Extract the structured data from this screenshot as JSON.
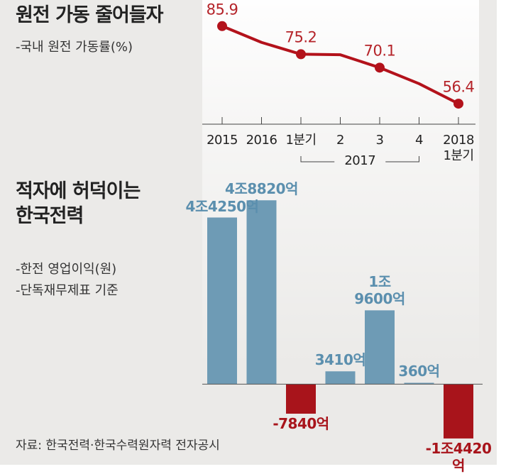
{
  "chart_data": [
    {
      "type": "line",
      "title": "원전 가동 줄어들자",
      "subtitle": "-국내 원전 가동률(%)",
      "categories": [
        "2015",
        "2016",
        "1분기",
        "2",
        "3",
        "4",
        "2018\n1분기"
      ],
      "group_label": "2017",
      "values": [
        85.9,
        79.7,
        75.2,
        75.0,
        70.1,
        64.0,
        56.4
      ],
      "value_labels": [
        "85.9",
        null,
        "75.2",
        null,
        "70.1",
        null,
        "56.4"
      ],
      "color": "#b3121b",
      "ylim": [
        54,
        88
      ]
    },
    {
      "type": "bar",
      "title": "적자에 허덕이는\n한국전력",
      "subtitle": [
        "-한전 영업이익(원)",
        "-단독재무제표 기준"
      ],
      "categories": [
        null,
        null,
        null,
        null,
        null,
        null,
        null
      ],
      "values": [
        44250,
        48820,
        -7840,
        3410,
        19600,
        360,
        -14420
      ],
      "value_labels": [
        "4조4250억",
        "4조8820억",
        "-7840억",
        "3410억",
        "1조\n9600억",
        "360억",
        "-1조4420억"
      ],
      "color": "#6e9bb5",
      "negative_color": "#a8141b",
      "ylim": [
        -15000,
        50000
      ]
    }
  ],
  "source": "자료: 한국전력·한국수력원자력 전자공시"
}
